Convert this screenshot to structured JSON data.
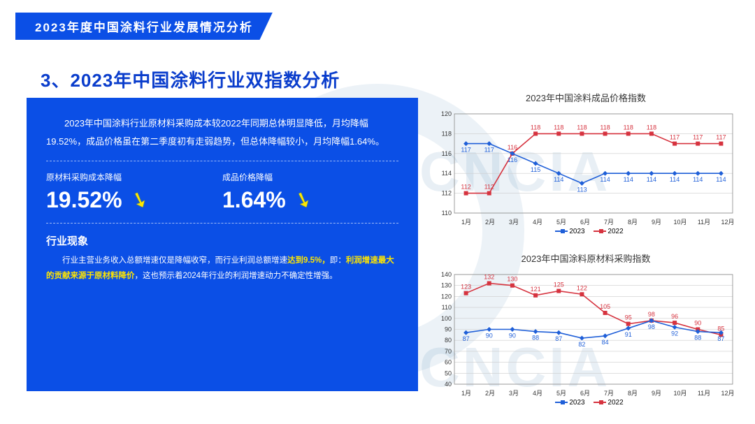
{
  "header": {
    "tab": "2023年度中国涂料行业发展情况分析"
  },
  "section_title": "3、2023年中国涂料行业双指数分析",
  "panel": {
    "para": "2023年中国涂料行业原材料采购成本较2022年同期总体明显降低，月均降幅19.52%，成品价格虽在第二季度初有走弱趋势，但总体降幅较小，月均降幅1.64%。",
    "metric1": {
      "label": "原材料采购成本降幅",
      "value": "19.52%"
    },
    "metric2": {
      "label": "成品价格降幅",
      "value": "1.64%"
    },
    "phen_title": "行业现象",
    "phen_pre": "行业主营业务收入总额增速仅是降幅收窄，而行业利润总额增速",
    "phen_hl1": "达到9.5%，",
    "phen_mid": "即：",
    "phen_hl2": "利润增速最大的贡献来源于原材料降价",
    "phen_post": "，这也预示着2024年行业的利润增速动力不确定性增强。"
  },
  "chart1": {
    "title": "2023年中国涂料成品价格指数",
    "type": "line",
    "months": [
      "1月",
      "2月",
      "3月",
      "4月",
      "5月",
      "6月",
      "7月",
      "8月",
      "9月",
      "10月",
      "11月",
      "12月"
    ],
    "series_2023": [
      117,
      117,
      116,
      115,
      114,
      113,
      114,
      114,
      114,
      114,
      114,
      114
    ],
    "series_2022": [
      112,
      112,
      116,
      118,
      118,
      118,
      118,
      118,
      118,
      117,
      117,
      117
    ],
    "ylim": [
      110,
      120
    ],
    "ytick_step": 2,
    "color_2023": "#1f5fd8",
    "color_2022": "#d6333f",
    "marker_2023": "diamond",
    "marker_2022": "square",
    "background_color": "#ffffff",
    "grid_color": "#cccccc",
    "label_color": "#333333",
    "label_fontsize": 9,
    "legend": {
      "2023": "2023",
      "2022": "2022"
    }
  },
  "chart2": {
    "title": "2023年中国涂料原材料采购指数",
    "type": "line",
    "months": [
      "1月",
      "2月",
      "3月",
      "4月",
      "5月",
      "6月",
      "7月",
      "8月",
      "9月",
      "10月",
      "11月",
      "12月"
    ],
    "series_2023": [
      87,
      90,
      90,
      88,
      87,
      82,
      84,
      91,
      98,
      92,
      88,
      87
    ],
    "series_2022": [
      123,
      132,
      130,
      121,
      125,
      122,
      105,
      95,
      98,
      96,
      90,
      85
    ],
    "ylim": [
      40,
      140
    ],
    "ytick_step": 10,
    "color_2023": "#1f5fd8",
    "color_2022": "#d6333f",
    "marker_2023": "diamond",
    "marker_2022": "square",
    "background_color": "#ffffff",
    "grid_color": "#cccccc",
    "label_color": "#333333",
    "label_fontsize": 9,
    "legend": {
      "2023": "2023",
      "2022": "2022"
    }
  },
  "watermark": "CNCIA"
}
